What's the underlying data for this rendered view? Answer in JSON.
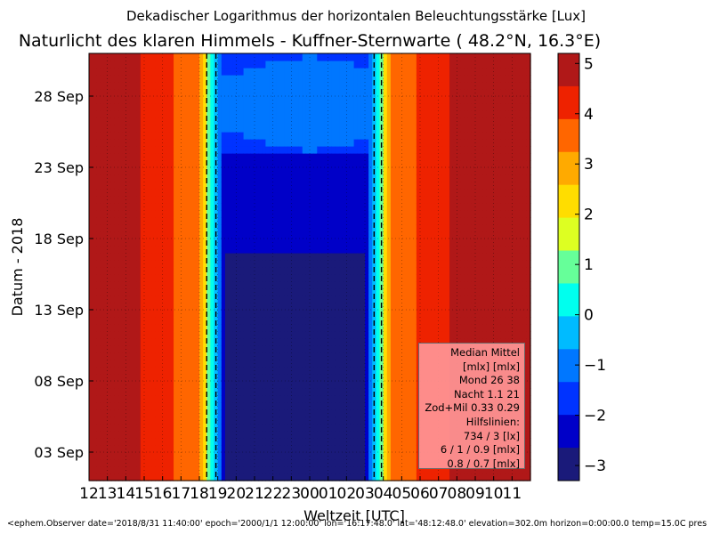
{
  "header": {
    "supertitle": "Dekadischer Logarithmus der horizontalen Beleuchtungsstärke [Lux]",
    "title": "Naturlicht des klaren Himmels - Kuffner-Sternwarte ( 48.2°N, 16.3°E)"
  },
  "footer": {
    "text": "<ephem.Observer date='2018/8/31 11:40:00' epoch='2000/1/1 12:00:00' lon='16:17:48.0' lat='48:12:48.0' elevation=302.0m horizon=0:00:00.0 temp=15.0C pres"
  },
  "legend": {
    "lines": [
      "Median Mittel",
      "[mlx]  [mlx]",
      "Mond   26  38",
      "Nacht 1.1  21",
      "Zod+Mil 0.33  0.29",
      "Hilfslinien:",
      "734 / 3  [lx]",
      "6 /  1 / 0.9 [mlx]",
      "0.8 / 0.7 [mlx]"
    ]
  },
  "chart_data": {
    "type": "heatmap",
    "xlabel": "Weltzeit [UTC]",
    "ylabel": "Datum - 2018",
    "x_ticks": [
      "12",
      "13",
      "14",
      "15",
      "16",
      "17",
      "18",
      "19",
      "20",
      "21",
      "22",
      "23",
      "00",
      "01",
      "02",
      "03",
      "04",
      "05",
      "06",
      "07",
      "08",
      "09",
      "10",
      "11"
    ],
    "y_ticks": [
      "03 Sep",
      "08 Sep",
      "13 Sep",
      "18 Sep",
      "23 Sep",
      "28 Sep"
    ],
    "y_tick_days": [
      3,
      8,
      13,
      18,
      23,
      28
    ],
    "y_range_days": [
      31,
      61
    ],
    "x_range_hours": [
      12,
      36
    ],
    "colorbar": {
      "ticks": [
        "5",
        "4",
        "3",
        "2",
        "1",
        "0",
        "−1",
        "−2",
        "−3"
      ],
      "range": [
        -3.3,
        5.2
      ],
      "colors": [
        "#1a1a7a",
        "#0000c8",
        "#0033ff",
        "#0077ff",
        "#00bbff",
        "#00ffee",
        "#66ff99",
        "#ddff22",
        "#ffdd00",
        "#ffaa00",
        "#ff6600",
        "#ee2200",
        "#b01818"
      ]
    },
    "sunset_hour_utc": 18.0,
    "sunrise_hour_utc": 4.4,
    "night_median_log": -3.0,
    "moon_log": -1.6,
    "grid": true
  }
}
